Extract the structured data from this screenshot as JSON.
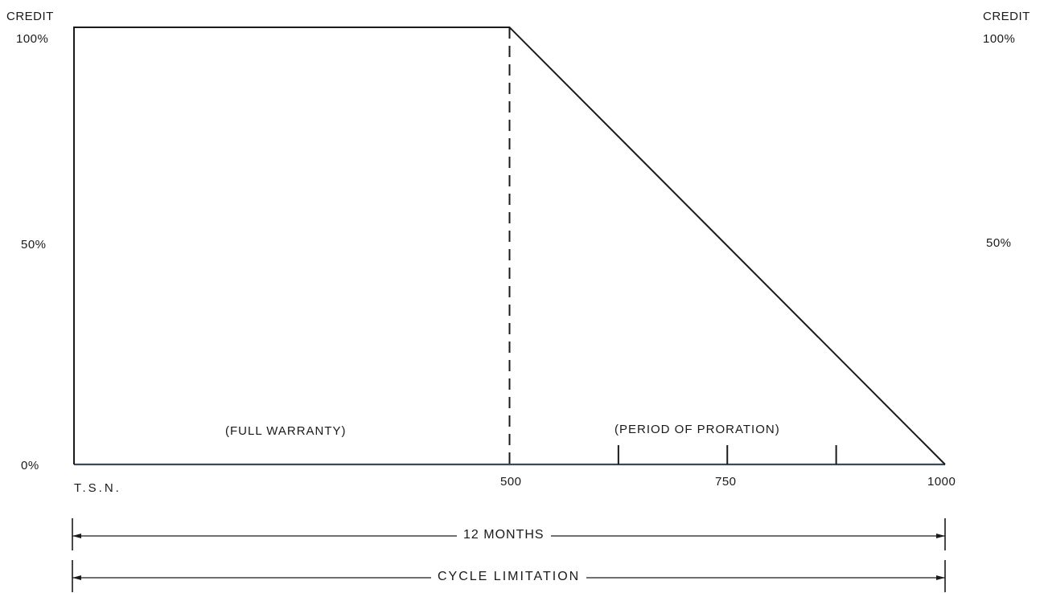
{
  "chart_data": {
    "type": "line",
    "x_axis": {
      "origin_label": "T.S.N.",
      "tick_labels": [
        "500",
        "750",
        "1000"
      ],
      "range": [
        0,
        1000
      ]
    },
    "y_axis": {
      "left": {
        "title": "CREDIT",
        "tick_labels": [
          "100%",
          "50%",
          "0%"
        ]
      },
      "right": {
        "title": "CREDIT",
        "tick_labels": [
          "100%",
          "50%"
        ]
      },
      "range": [
        0,
        100
      ]
    },
    "series": [
      {
        "x": [
          0,
          0,
          500,
          1000
        ],
        "y": [
          0,
          100,
          100,
          0
        ]
      }
    ],
    "minor_ticks": [
      625,
      750,
      875
    ],
    "annotations": {
      "full_warranty": "(FULL WARRANTY)",
      "proration": "(PERIOD OF PRORATION)"
    },
    "dimension_lines": [
      {
        "label": "12 MONTHS"
      },
      {
        "label": "CYCLE LIMITATION"
      }
    ],
    "grid": false
  }
}
